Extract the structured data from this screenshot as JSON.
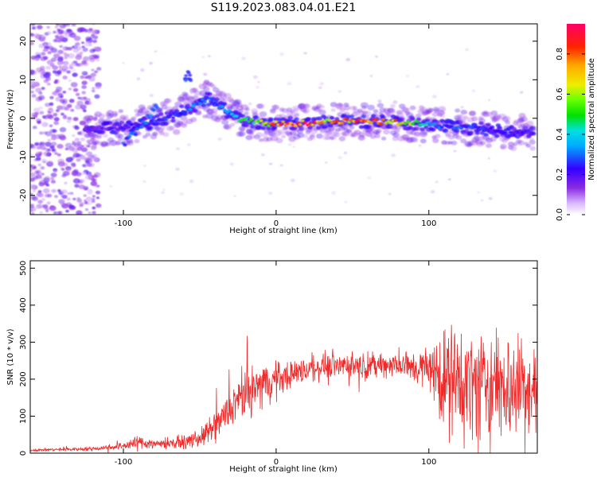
{
  "figure": {
    "title": "S119.2023.083.04.01.E21"
  },
  "chart_data": [
    {
      "type": "heatmap",
      "xlabel": "Height of straight line (km)",
      "ylabel": "Frequency (Hz)",
      "xlim": [
        -161,
        171
      ],
      "ylim": [
        -25,
        24.5
      ],
      "xticks": [
        -100,
        0,
        100
      ],
      "yticks": [
        -20,
        -10,
        0,
        10,
        20
      ],
      "xtick_labels": [
        "-100",
        "0",
        "100"
      ],
      "ytick_labels": [
        "-20",
        "-10",
        "0",
        "10",
        "20"
      ],
      "colorbar": {
        "label": "Normalized spectral amplitude",
        "range": [
          0,
          0.95
        ],
        "ticks": [
          0,
          0.2,
          0.4,
          0.6,
          0.8
        ],
        "tick_labels": [
          "0.0",
          "0.2",
          "0.4",
          "0.6",
          "0.8"
        ]
      },
      "ridge": {
        "x": [
          -125,
          -110,
          -95,
          -80,
          -65,
          -55,
          -45,
          -38,
          -33,
          -25,
          -15,
          0,
          20,
          40,
          60,
          80,
          95,
          110,
          125,
          140,
          155,
          168
        ],
        "y": [
          -3,
          -2.5,
          -2,
          -1,
          1,
          3,
          5,
          4,
          2,
          0,
          -1,
          -1.5,
          -1.2,
          -0.8,
          -0.8,
          -1,
          -1.5,
          -2,
          -2.5,
          -3,
          -3.5,
          -4
        ],
        "peak_amplitude": [
          0.15,
          0.2,
          0.22,
          0.25,
          0.3,
          0.35,
          0.3,
          0.3,
          0.4,
          0.5,
          0.55,
          0.85,
          0.9,
          0.8,
          0.9,
          0.85,
          0.5,
          0.3,
          0.3,
          0.25,
          0.25,
          0.2
        ]
      }
    },
    {
      "type": "line",
      "xlabel": "Height of straight line (km)",
      "ylabel": "SNR (10 * v/v)",
      "xlim": [
        -161,
        171
      ],
      "ylim": [
        0,
        520
      ],
      "xticks": [
        -100,
        0,
        100
      ],
      "yticks": [
        0,
        100,
        200,
        300,
        400,
        500
      ],
      "xtick_labels": [
        "-100",
        "0",
        "100"
      ],
      "ytick_labels": [
        "0",
        "100",
        "200",
        "300",
        "400",
        "500"
      ],
      "series_color": "#ee2a2a",
      "envelope": {
        "x": [
          -161,
          -140,
          -120,
          -100,
          -90,
          -80,
          -60,
          -50,
          -40,
          -30,
          -20,
          -10,
          0,
          10,
          20,
          30,
          40,
          50,
          60,
          70,
          80,
          90,
          100,
          105,
          110,
          120,
          130,
          140,
          150,
          160,
          171
        ],
        "mean": [
          8,
          10,
          12,
          20,
          30,
          25,
          30,
          40,
          70,
          120,
          160,
          185,
          200,
          215,
          225,
          235,
          240,
          238,
          235,
          240,
          238,
          232,
          230,
          220,
          200,
          190,
          185,
          185,
          180,
          180,
          170
        ],
        "spread": [
          5,
          6,
          8,
          15,
          30,
          20,
          25,
          35,
          60,
          80,
          90,
          85,
          70,
          55,
          50,
          50,
          50,
          50,
          50,
          50,
          55,
          65,
          90,
          140,
          200,
          220,
          220,
          220,
          220,
          220,
          200
        ]
      }
    }
  ]
}
